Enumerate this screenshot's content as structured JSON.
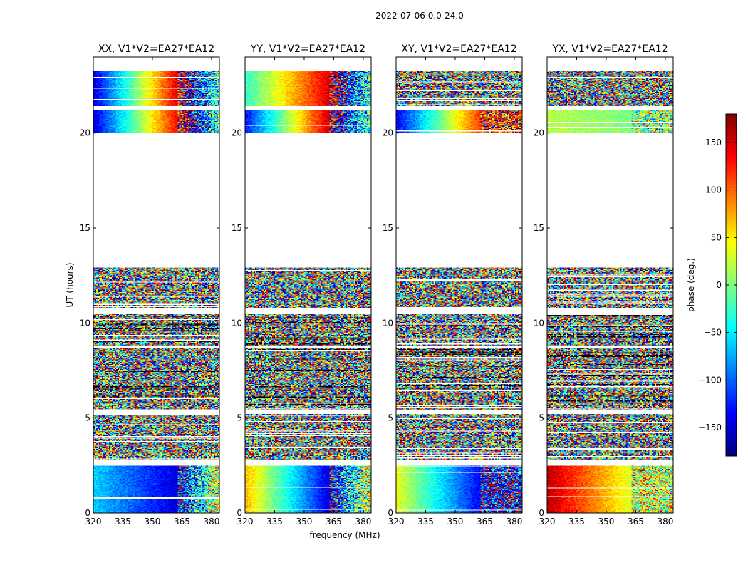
{
  "chart_data": {
    "type": "heatmap",
    "suptitle": "2022-07-06 0.0-24.0",
    "xlabel": "frequency (MHz)",
    "ylabel": "UT (hours)",
    "xlim": [
      320,
      384
    ],
    "ylim": [
      0,
      24
    ],
    "xticks": [
      320,
      335,
      350,
      365,
      380
    ],
    "yticks": [
      0,
      5,
      10,
      15,
      20
    ],
    "colorbar": {
      "label": "phase (deg.)",
      "range": [
        -180,
        180
      ],
      "ticks": [
        150,
        100,
        50,
        0,
        -50,
        -100,
        -150
      ],
      "tick_labels": [
        "150",
        "100",
        "50",
        "0",
        "−50",
        "−100",
        "−150"
      ],
      "colormap": "jet",
      "colors": [
        "#00007f",
        "#0000ff",
        "#007fff",
        "#00ffff",
        "#7fff7f",
        "#ffff00",
        "#ff7f00",
        "#ff0000",
        "#7f0000"
      ]
    },
    "data_hour_bands": [
      [
        0.0,
        2.5,
        "coherent"
      ],
      [
        2.8,
        5.2,
        "noise"
      ],
      [
        5.4,
        8.7,
        "noise"
      ],
      [
        8.8,
        10.5,
        "noise"
      ],
      [
        10.8,
        12.9,
        "noise"
      ],
      [
        20.0,
        21.2,
        "coherent"
      ],
      [
        21.4,
        23.3,
        "coherent"
      ]
    ],
    "panels": [
      {
        "title": "XX, V1*V2=EA27*EA12",
        "low_band_phase_deg": [
          -60,
          -150
        ],
        "high_band_phase_deg": [
          -150,
          140
        ],
        "late_band_phase_deg": [
          -150,
          150
        ]
      },
      {
        "title": "YY, V1*V2=EA27*EA12",
        "low_band_phase_deg": [
          70,
          -150
        ],
        "high_band_phase_deg": [
          -130,
          160
        ],
        "late_band_phase_deg": [
          -30,
          150
        ]
      },
      {
        "title": "XY, V1*V2=EA27*EA12",
        "low_band_phase_deg": [
          40,
          -140
        ],
        "high_band_phase_deg": [
          -140,
          120
        ],
        "late_band_phase_deg": null
      },
      {
        "title": "YX, V1*V2=EA27*EA12",
        "low_band_phase_deg": [
          160,
          30
        ],
        "high_band_phase_deg": [
          20,
          0
        ],
        "late_band_phase_deg": null
      }
    ]
  }
}
